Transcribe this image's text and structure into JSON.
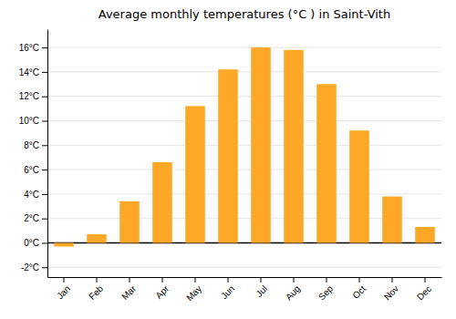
{
  "chart_data": {
    "type": "bar",
    "title": "Average monthly temperatures (°C ) in Saint-Vith",
    "categories": [
      "Jan",
      "Feb",
      "Mar",
      "Apr",
      "May",
      "Jun",
      "Jul",
      "Aug",
      "Sep",
      "Oct",
      "Nov",
      "Dec"
    ],
    "values": [
      -0.3,
      0.7,
      3.4,
      6.6,
      11.2,
      14.2,
      16.0,
      15.8,
      13.0,
      9.2,
      3.8,
      1.3
    ],
    "color": "#FFA726",
    "ylim": [
      -2.8,
      17.5
    ],
    "yticks": [
      {
        "value": -2,
        "label": "-2°C"
      },
      {
        "value": 0,
        "label": "0°C"
      },
      {
        "value": 2,
        "label": "2°C"
      },
      {
        "value": 4,
        "label": "4°C"
      },
      {
        "value": 6,
        "label": "6°C"
      },
      {
        "value": 8,
        "label": "8°C"
      },
      {
        "value": 10,
        "label": "10°C"
      },
      {
        "value": 12,
        "label": "12°C"
      },
      {
        "value": 14,
        "label": "14°C"
      },
      {
        "value": 16,
        "label": "16°C"
      }
    ],
    "grid": true
  }
}
